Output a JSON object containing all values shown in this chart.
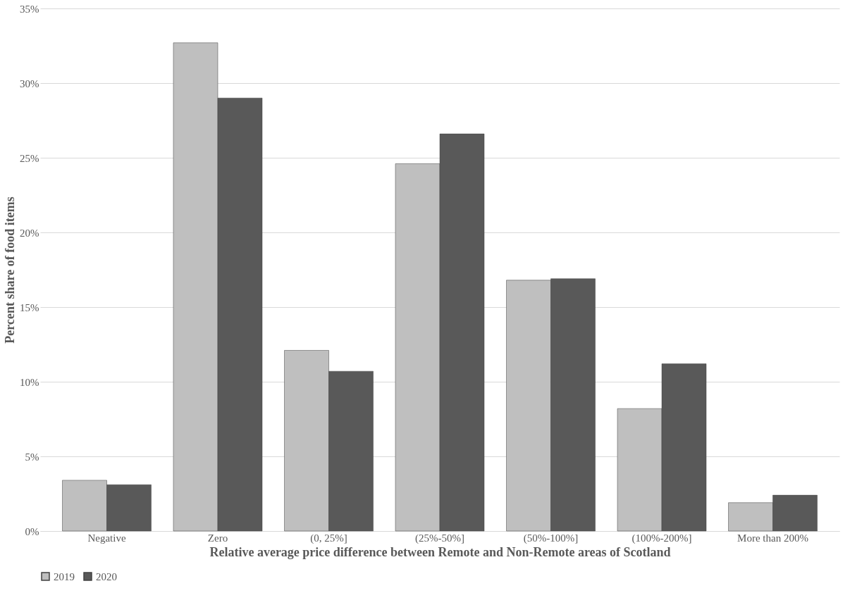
{
  "chart_data": {
    "type": "bar",
    "xlabel": "Relative average price difference between Remote and Non-Remote areas of Scotland",
    "ylabel": "Percent share of food items",
    "categories": [
      "Negative",
      "Zero",
      "(0, 25%]",
      "(25%-50%]",
      "(50%-100%]",
      "(100%-200%]",
      "More than 200%"
    ],
    "series": [
      {
        "name": "2019",
        "color": "#bfbfbf",
        "values": [
          3.4,
          32.7,
          12.1,
          24.6,
          16.8,
          8.2,
          1.9
        ]
      },
      {
        "name": "2020",
        "color": "#595959",
        "values": [
          3.1,
          29.0,
          10.7,
          26.6,
          16.9,
          11.2,
          2.4
        ]
      }
    ],
    "ylim": [
      0,
      35
    ],
    "yticks": [
      {
        "value": 0,
        "label": "0%"
      },
      {
        "value": 5,
        "label": "5%"
      },
      {
        "value": 10,
        "label": "10%"
      },
      {
        "value": 15,
        "label": "15%"
      },
      {
        "value": 20,
        "label": "20%"
      },
      {
        "value": 25,
        "label": "25%"
      },
      {
        "value": 30,
        "label": "30%"
      },
      {
        "value": 35,
        "label": "35%"
      }
    ],
    "grid": "y",
    "legend": "bottom"
  }
}
